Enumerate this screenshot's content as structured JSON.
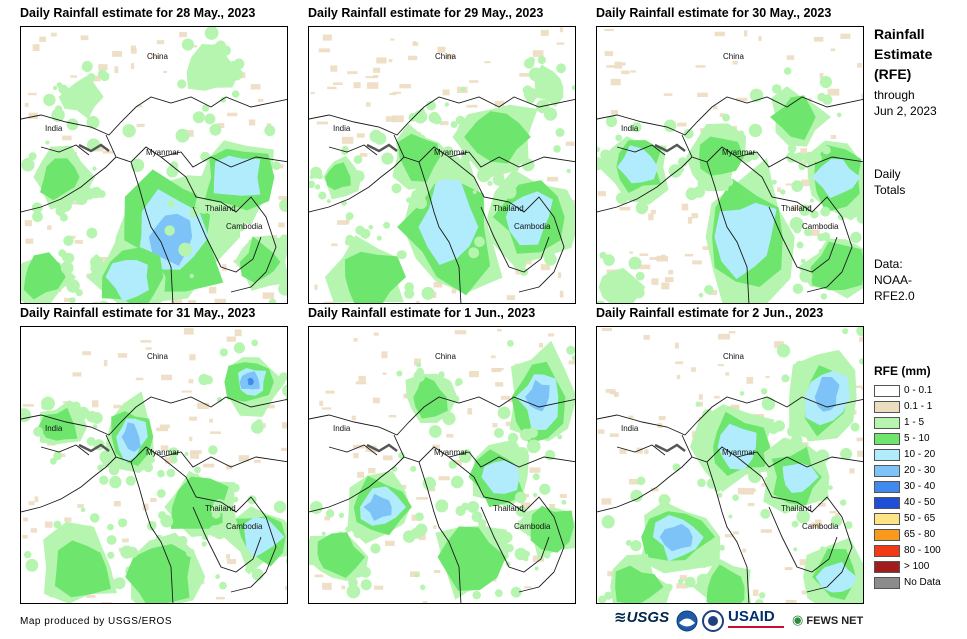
{
  "panels": [
    {
      "title": "Daily Rainfall estimate for 28 May., 2023"
    },
    {
      "title": "Daily Rainfall estimate for 29 May., 2023"
    },
    {
      "title": "Daily Rainfall estimate for 30 May., 2023"
    },
    {
      "title": "Daily Rainfall estimate for 31 May., 2023"
    },
    {
      "title": "Daily Rainfall estimate for 1 Jun., 2023"
    },
    {
      "title": "Daily Rainfall estimate for 2 Jun., 2023"
    }
  ],
  "map_labels": {
    "china": "China",
    "india": "India",
    "myanmar": "Myanmar",
    "thailand": "Thailand",
    "cambodia": "Cambodia"
  },
  "side": {
    "title_line1": "Rainfall",
    "title_line2": "Estimate",
    "title_line3": "(RFE)",
    "through": "through",
    "date": "Jun 2, 2023",
    "daily": "Daily",
    "totals": "Totals",
    "data_label": "Data:",
    "data_source1": "NOAA-",
    "data_source2": "RFE2.0"
  },
  "legend": {
    "title": "RFE (mm)",
    "items": [
      {
        "label": "0 - 0.1",
        "color": "#ffffff"
      },
      {
        "label": "0.1 - 1",
        "color": "#ecdcc0"
      },
      {
        "label": "1 - 5",
        "color": "#b5f5b0"
      },
      {
        "label": "5 - 10",
        "color": "#6ee66e"
      },
      {
        "label": "10 - 20",
        "color": "#b0ecfb"
      },
      {
        "label": "20 - 30",
        "color": "#7dc3f7"
      },
      {
        "label": "30 - 40",
        "color": "#4289ee"
      },
      {
        "label": "40 - 50",
        "color": "#1f4fd6"
      },
      {
        "label": "50 - 65",
        "color": "#fde587"
      },
      {
        "label": "65 - 80",
        "color": "#f99a1c"
      },
      {
        "label": "80 - 100",
        "color": "#f23a14"
      },
      {
        "label": "> 100",
        "color": "#a01d1d"
      },
      {
        "label": "No Data",
        "color": "#8c8c8c"
      }
    ]
  },
  "footer": {
    "credit": "Map produced by USGS/EROS",
    "logo_usgs": "USGS",
    "logo_usaid": "USAID",
    "logo_fews": "FEWS NET"
  }
}
